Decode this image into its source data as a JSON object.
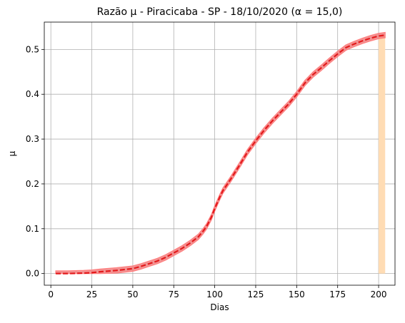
{
  "chart_data": {
    "type": "line",
    "title": "Razão μ - Piracicaba - SP - 18/10/2020 (α = 15,0)",
    "xlabel": "Dias",
    "ylabel": "μ",
    "xlim": [
      -4,
      210
    ],
    "ylim": [
      -0.026,
      0.561
    ],
    "xticks": [
      0,
      25,
      50,
      75,
      100,
      125,
      150,
      175,
      200
    ],
    "yticks": [
      0.0,
      0.1,
      0.2,
      0.3,
      0.4,
      0.5
    ],
    "xtick_labels": [
      "0",
      "25",
      "50",
      "75",
      "100",
      "125",
      "150",
      "175",
      "200"
    ],
    "ytick_labels": [
      "0.0",
      "0.1",
      "0.2",
      "0.3",
      "0.4",
      "0.5"
    ],
    "grid": true,
    "colors": {
      "band_fill": "#f08080",
      "band_edge": "#ff7f7f",
      "mean_line": "#e41a1c",
      "highlight": "#ffdcb4",
      "grid": "#b0b0b0"
    },
    "highlight_region": {
      "x_start": 200,
      "x_end": 204
    },
    "band_halfwidth": 0.006,
    "series": [
      {
        "x": [
          3,
          10,
          20,
          25,
          30,
          40,
          50,
          55,
          60,
          65,
          70,
          75,
          80,
          85,
          90,
          93,
          95,
          98,
          100,
          103,
          105,
          110,
          115,
          120,
          125,
          130,
          135,
          140,
          145,
          150,
          155,
          160,
          165,
          170,
          175,
          180,
          185,
          190,
          195,
          200,
          204
        ],
        "values": [
          0.0,
          0.0,
          0.001,
          0.002,
          0.004,
          0.007,
          0.011,
          0.016,
          0.022,
          0.028,
          0.036,
          0.046,
          0.056,
          0.068,
          0.082,
          0.095,
          0.105,
          0.126,
          0.145,
          0.17,
          0.185,
          0.212,
          0.241,
          0.271,
          0.296,
          0.319,
          0.34,
          0.359,
          0.378,
          0.4,
          0.425,
          0.444,
          0.459,
          0.475,
          0.49,
          0.504,
          0.512,
          0.519,
          0.525,
          0.53,
          0.532
        ]
      }
    ]
  }
}
